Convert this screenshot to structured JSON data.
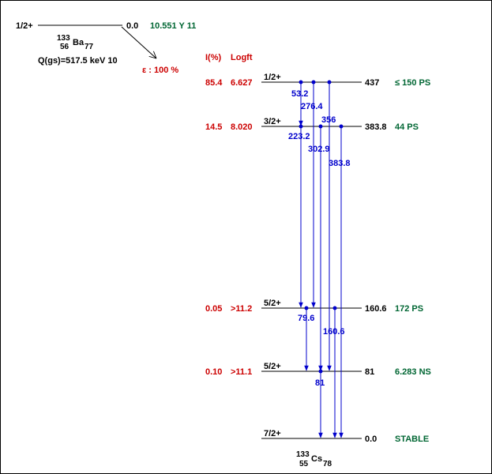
{
  "colors": {
    "black": "#000000",
    "red": "#cc0000",
    "green": "#006633",
    "blue": "#0000cc"
  },
  "parent": {
    "spin": "1/2+",
    "mass": "133",
    "z": "56",
    "symbol": "Ba",
    "n": "77",
    "energy": "0.0",
    "halflife": "10.551 Y 11",
    "qvalue": "Q(gs)=517.5 keV 10",
    "decay_mode": "ε : 100 %"
  },
  "headers": {
    "intensity": "I(%)",
    "logft": "Logft"
  },
  "daughter": {
    "mass": "133",
    "z": "55",
    "symbol": "Cs",
    "n": "78"
  },
  "levels": [
    {
      "spin": "1/2+",
      "energy": "437",
      "halflife": "≤ 150 PS",
      "intensity": "85.4",
      "logft": "6.627"
    },
    {
      "spin": "3/2+",
      "energy": "383.8",
      "halflife": "44 PS",
      "intensity": "14.5",
      "logft": "8.020"
    },
    {
      "spin": "5/2+",
      "energy": "160.6",
      "halflife": "172 PS",
      "intensity": "0.05",
      "logft": ">11.2"
    },
    {
      "spin": "5/2+",
      "energy": "81",
      "halflife": "6.283 NS",
      "intensity": "0.10",
      "logft": ">11.1"
    },
    {
      "spin": "7/2+",
      "energy": "0.0",
      "halflife": "STABLE",
      "intensity": "",
      "logft": ""
    }
  ],
  "gammas": [
    {
      "label": "53.2",
      "from": 0,
      "to": 1
    },
    {
      "label": "276.4",
      "from": 0,
      "to": 2
    },
    {
      "label": "356",
      "from": 0,
      "to": 3
    },
    {
      "label": "223.2",
      "from": 1,
      "to": 2
    },
    {
      "label": "302.9",
      "from": 1,
      "to": 3
    },
    {
      "label": "383.8",
      "from": 1,
      "to": 4
    },
    {
      "label": "79.6",
      "from": 2,
      "to": 3
    },
    {
      "label": "160.6",
      "from": 2,
      "to": 4
    },
    {
      "label": "81",
      "from": 3,
      "to": 4
    }
  ]
}
